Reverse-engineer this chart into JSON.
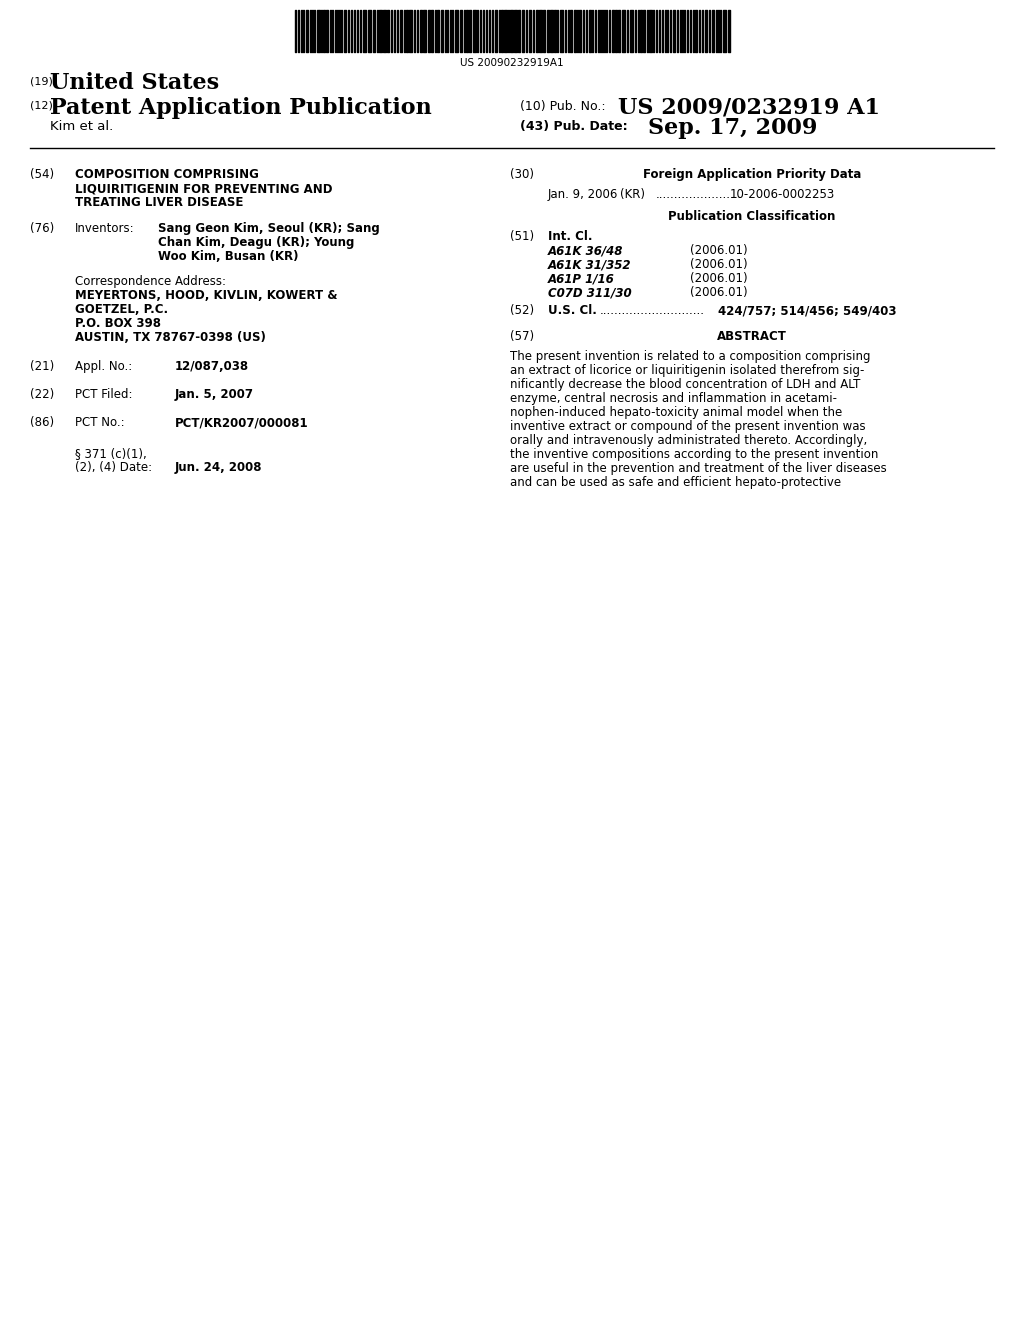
{
  "background_color": "#ffffff",
  "barcode_text": "US 20090232919A1",
  "header_19": "(19)",
  "header_19_text": "United States",
  "header_12": "(12)",
  "header_12_text": "Patent Application Publication",
  "header_10_label": "(10) Pub. No.:",
  "header_10_val": "US 2009/0232919 A1",
  "header_43_label": "(43) Pub. Date:",
  "header_43_val": "Sep. 17, 2009",
  "header_name": "Kim et al.",
  "field_54_num": "(54)",
  "field_54_line1": "COMPOSITION COMPRISING",
  "field_54_line2": "LIQUIRITIGENIN FOR PREVENTING AND",
  "field_54_line3": "TREATING LIVER DISEASE",
  "field_76_num": "(76)",
  "field_76_label": "Inventors:",
  "field_76_line1": "Sang Geon Kim, Seoul (KR); Sang",
  "field_76_line2": "Chan Kim, Deagu (KR); Young",
  "field_76_line3": "Woo Kim, Busan (KR)",
  "corr_label": "Correspondence Address:",
  "corr_line1": "MEYERTONS, HOOD, KIVLIN, KOWERT &",
  "corr_line2": "GOETZEL, P.C.",
  "corr_line3": "P.O. BOX 398",
  "corr_line4": "AUSTIN, TX 78767-0398 (US)",
  "field_21_num": "(21)",
  "field_21_label": "Appl. No.:",
  "field_21_val": "12/087,038",
  "field_22_num": "(22)",
  "field_22_label": "PCT Filed:",
  "field_22_val": "Jan. 5, 2007",
  "field_86_num": "(86)",
  "field_86_label": "PCT No.:",
  "field_86_val": "PCT/KR2007/000081",
  "field_371_label1": "§ 371 (c)(1),",
  "field_371_label2": "(2), (4) Date:",
  "field_371_val": "Jun. 24, 2008",
  "field_30_num": "(30)",
  "field_30_header": "Foreign Application Priority Data",
  "field_30_date": "Jan. 9, 2006",
  "field_30_country": "(KR)",
  "field_30_dots": ".......................",
  "field_30_num2": "10-2006-0002253",
  "pub_class_header": "Publication Classification",
  "field_51_num": "(51)",
  "field_51_label": "Int. Cl.",
  "int_cl_lines": [
    [
      "A61K 36/48",
      "(2006.01)"
    ],
    [
      "A61K 31/352",
      "(2006.01)"
    ],
    [
      "A61P 1/16",
      "(2006.01)"
    ],
    [
      "C07D 311/30",
      "(2006.01)"
    ]
  ],
  "field_52_num": "(52)",
  "field_52_label": "U.S. Cl.",
  "field_52_dots": "............................",
  "field_52_val": "424/757; 514/456; 549/403",
  "field_57_num": "(57)",
  "field_57_header": "ABSTRACT",
  "abstract_lines": [
    "The present invention is related to a composition comprising",
    "an extract of licorice or liquiritigenin isolated therefrom sig-",
    "nificantly decrease the blood concentration of LDH and ALT",
    "enzyme, central necrosis and inflammation in acetami-",
    "nophen-induced hepato-toxicity animal model when the",
    "inventive extract or compound of the present invention was",
    "orally and intravenously administrated thereto. Accordingly,",
    "the inventive compositions according to the present invention",
    "are useful in the prevention and treatment of the liver diseases",
    "and can be used as safe and efficient hepato-protective"
  ]
}
